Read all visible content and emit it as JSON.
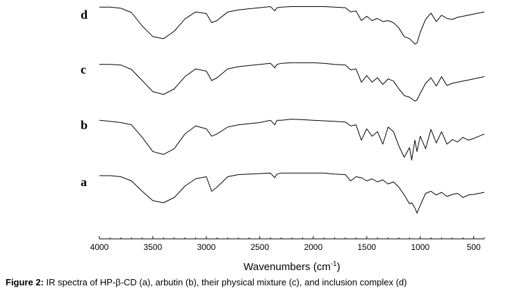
{
  "chart_data": {
    "type": "line",
    "x": [
      4000,
      3900,
      3800,
      3700,
      3600,
      3500,
      3400,
      3300,
      3200,
      3100,
      3000,
      2950,
      2900,
      2800,
      2700,
      2600,
      2500,
      2400,
      2360,
      2340,
      2300,
      2200,
      2100,
      2000,
      1900,
      1800,
      1700,
      1650,
      1600,
      1550,
      1500,
      1450,
      1400,
      1350,
      1300,
      1250,
      1200,
      1150,
      1100,
      1080,
      1050,
      1030,
      1000,
      950,
      900,
      850,
      800,
      750,
      700,
      650,
      600,
      550,
      500,
      450,
      400
    ],
    "xlim": [
      4000,
      400
    ],
    "xticks": [
      "4000",
      "3500",
      "3000",
      "2500",
      "2000",
      "1500",
      "1000",
      "500"
    ],
    "xlabel": "Wavenumbers (cm",
    "xlabel_sup": "-1",
    "xlabel_end": ")",
    "ylabel": "",
    "series": [
      {
        "name": "a",
        "values": [
          0.92,
          0.92,
          0.9,
          0.82,
          0.62,
          0.44,
          0.4,
          0.5,
          0.72,
          0.86,
          0.9,
          0.62,
          0.7,
          0.9,
          0.94,
          0.95,
          0.96,
          0.97,
          0.88,
          0.95,
          0.97,
          0.97,
          0.97,
          0.97,
          0.97,
          0.95,
          0.94,
          0.82,
          0.9,
          0.88,
          0.82,
          0.86,
          0.8,
          0.84,
          0.76,
          0.8,
          0.7,
          0.55,
          0.38,
          0.4,
          0.3,
          0.2,
          0.35,
          0.58,
          0.62,
          0.55,
          0.6,
          0.52,
          0.56,
          0.58,
          0.5,
          0.55,
          0.56,
          0.58,
          0.6
        ]
      },
      {
        "name": "b",
        "values": [
          0.9,
          0.88,
          0.86,
          0.82,
          0.6,
          0.35,
          0.3,
          0.4,
          0.66,
          0.8,
          0.75,
          0.62,
          0.66,
          0.78,
          0.82,
          0.84,
          0.86,
          0.9,
          0.82,
          0.9,
          0.9,
          0.92,
          0.91,
          0.9,
          0.89,
          0.88,
          0.87,
          0.8,
          0.82,
          0.55,
          0.75,
          0.62,
          0.7,
          0.48,
          0.78,
          0.7,
          0.45,
          0.25,
          0.42,
          0.2,
          0.55,
          0.35,
          0.62,
          0.4,
          0.74,
          0.5,
          0.7,
          0.48,
          0.56,
          0.52,
          0.6,
          0.55,
          0.58,
          0.62,
          0.66
        ]
      },
      {
        "name": "c",
        "values": [
          0.94,
          0.94,
          0.93,
          0.85,
          0.65,
          0.45,
          0.4,
          0.5,
          0.72,
          0.86,
          0.82,
          0.65,
          0.7,
          0.86,
          0.9,
          0.92,
          0.94,
          0.96,
          0.88,
          0.94,
          0.96,
          0.97,
          0.97,
          0.97,
          0.96,
          0.94,
          0.93,
          0.84,
          0.86,
          0.62,
          0.74,
          0.62,
          0.7,
          0.58,
          0.68,
          0.64,
          0.5,
          0.38,
          0.35,
          0.32,
          0.28,
          0.3,
          0.42,
          0.6,
          0.7,
          0.55,
          0.72,
          0.56,
          0.6,
          0.62,
          0.64,
          0.66,
          0.68,
          0.7,
          0.72
        ]
      },
      {
        "name": "d",
        "values": [
          0.97,
          0.97,
          0.95,
          0.87,
          0.62,
          0.42,
          0.38,
          0.52,
          0.75,
          0.88,
          0.85,
          0.68,
          0.72,
          0.88,
          0.92,
          0.94,
          0.96,
          0.98,
          0.9,
          0.96,
          0.97,
          0.98,
          0.98,
          0.98,
          0.98,
          0.97,
          0.96,
          0.88,
          0.9,
          0.72,
          0.8,
          0.72,
          0.76,
          0.7,
          0.72,
          0.68,
          0.58,
          0.42,
          0.38,
          0.34,
          0.28,
          0.3,
          0.5,
          0.74,
          0.86,
          0.7,
          0.82,
          0.76,
          0.74,
          0.78,
          0.8,
          0.82,
          0.84,
          0.86,
          0.88
        ]
      }
    ]
  },
  "caption": {
    "label": "Figure 2:",
    "text": " IR spectra of HP-β-CD (a), arbutin (b), their physical mixture (c), and inclusion complex (d)"
  }
}
